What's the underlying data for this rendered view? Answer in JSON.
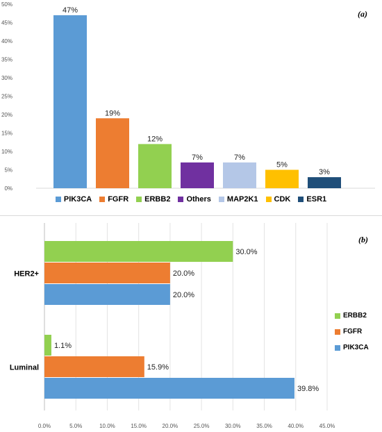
{
  "chart_data": [
    {
      "type": "bar",
      "panel_label": "(a)",
      "categories": [
        "PIK3CA",
        "FGFR",
        "ERBB2",
        "Others",
        "MAP2K1",
        "CDK",
        "ESR1"
      ],
      "values": [
        47,
        19,
        12,
        7,
        7,
        5,
        3
      ],
      "data_labels": [
        "47%",
        "19%",
        "12%",
        "7%",
        "7%",
        "5%",
        "3%"
      ],
      "colors": [
        "#5b9bd5",
        "#ed7d31",
        "#92d050",
        "#7030a0",
        "#b4c7e7",
        "#ffc000",
        "#1f4e79"
      ],
      "ylim": [
        0,
        50
      ],
      "yticks": [
        "0%",
        "5%",
        "10%",
        "15%",
        "20%",
        "25%",
        "30%",
        "35%",
        "40%",
        "45%",
        "50%"
      ],
      "grid": false,
      "legend": "bottom"
    },
    {
      "type": "bar",
      "orientation": "horizontal",
      "panel_label": "(b)",
      "categories": [
        "HER2+",
        "Luminal"
      ],
      "series": [
        {
          "name": "ERBB2",
          "color": "#92d050",
          "values": [
            30.0,
            1.1
          ],
          "labels": [
            "30.0%",
            "1.1%"
          ]
        },
        {
          "name": "FGFR",
          "color": "#ed7d31",
          "values": [
            20.0,
            15.9
          ],
          "labels": [
            "20.0%",
            "15.9%"
          ]
        },
        {
          "name": "PIK3CA",
          "color": "#5b9bd5",
          "values": [
            20.0,
            39.8
          ],
          "labels": [
            "20.0%",
            "39.8%"
          ]
        }
      ],
      "xlim": [
        0,
        45
      ],
      "xticks": [
        "0.0%",
        "5.0%",
        "10.0%",
        "15.0%",
        "20.0%",
        "25.0%",
        "30.0%",
        "35.0%",
        "40.0%",
        "45.0%"
      ],
      "grid": "vertical",
      "legend": "right"
    }
  ]
}
